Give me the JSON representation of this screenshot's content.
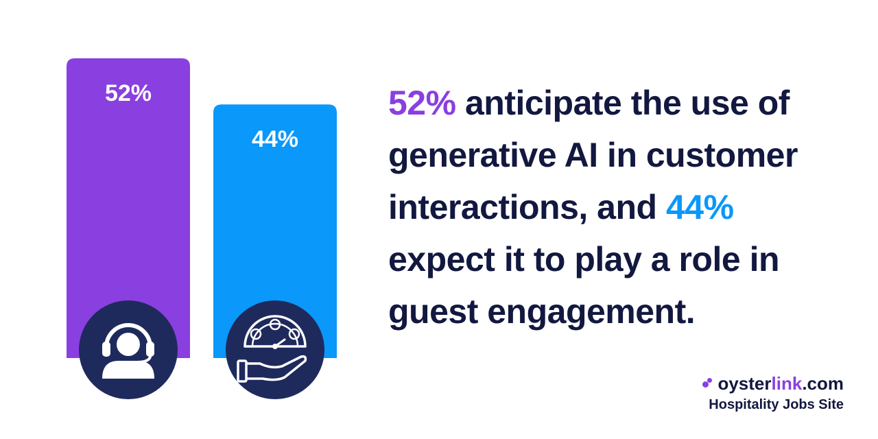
{
  "chart_data": {
    "type": "bar",
    "categories": [
      "customer interactions",
      "guest engagement"
    ],
    "values": [
      52,
      44
    ],
    "value_labels": [
      "52%",
      "44%"
    ],
    "colors": [
      "#8a3fe0",
      "#0a98fb"
    ],
    "icons": [
      "customer-support-headset-icon",
      "satisfaction-gauge-hand-icon"
    ],
    "grid": false
  },
  "headline": {
    "pct1": "52%",
    "text1": " anticipate the use of generative AI in customer interactions, and ",
    "pct2": "44%",
    "text2": " expect it to play a role in guest engagement."
  },
  "brand": {
    "name_part1": "oyster",
    "name_part2": "link",
    "name_part3": ".com",
    "tagline": "Hospitality Jobs Site"
  },
  "colors": {
    "accent_purple": "#8a3fe0",
    "accent_blue": "#0a98fb",
    "navy": "#1f2a5c",
    "text": "#12183f"
  }
}
